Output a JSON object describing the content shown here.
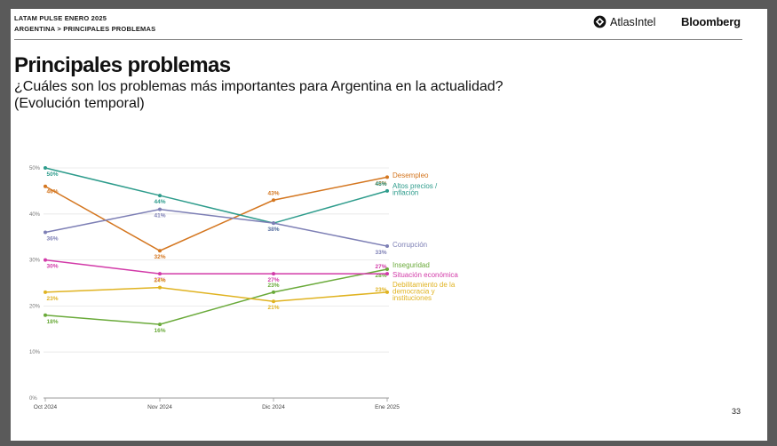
{
  "header": {
    "report": "LATAM PULSE ENERO 2025",
    "breadcrumb": "ARGENTINA > PRINCIPALES PROBLEMAS",
    "logo_atlas": "AtlasIntel",
    "logo_bloomberg": "Bloomberg"
  },
  "title": "Principales problemas",
  "subtitle_line1": "¿Cuáles son los problemas más importantes para Argentina en la actualidad?",
  "subtitle_line2": "(Evolución temporal)",
  "page_number": "33",
  "chart_data": {
    "type": "line",
    "title": "Principales problemas",
    "xlabel": "",
    "ylabel": "",
    "ylim": [
      0,
      50
    ],
    "yticks": [
      "0%",
      "10%",
      "20%",
      "30%",
      "40%",
      "50%"
    ],
    "yticks_values": [
      0,
      10,
      20,
      30,
      40,
      50
    ],
    "categories": [
      "Oct 2024",
      "Nov 2024",
      "Dic 2024",
      "Ene 2025"
    ],
    "series": [
      {
        "name": "Desempleo",
        "color": "#d4761f",
        "values": [
          46,
          32,
          43,
          48
        ],
        "labels": [
          "46%",
          "32%",
          "43%",
          "48%"
        ]
      },
      {
        "name": "Altos precios / inflación",
        "color": "#2e9c8c",
        "values": [
          50,
          44,
          38,
          45
        ],
        "labels": [
          "50%",
          "44%",
          "38%",
          "45%"
        ]
      },
      {
        "name": "Corrupción",
        "color": "#7d7fb5",
        "values": [
          36,
          41,
          38,
          33
        ],
        "labels": [
          "36%",
          "41%",
          "38%",
          "33%"
        ]
      },
      {
        "name": "Inseguridad",
        "color": "#6aaa3a",
        "values": [
          18,
          16,
          23,
          28
        ],
        "labels": [
          "18%",
          "16%",
          "23%",
          "28%"
        ]
      },
      {
        "name": "Situación económica",
        "color": "#d23aa8",
        "values": [
          30,
          27,
          27,
          27
        ],
        "labels": [
          "30%",
          "27%",
          "27%",
          "27%"
        ]
      },
      {
        "name": "Debilitamiento de la democracia y instituciones",
        "color": "#e0b321",
        "values": [
          23,
          24,
          21,
          23
        ],
        "labels": [
          "23%",
          "24%",
          "21%",
          "23%"
        ]
      }
    ],
    "series_label_lines": [
      [
        "Desempleo"
      ],
      [
        "Altos precios /",
        "inflación"
      ],
      [
        "Corrupción"
      ],
      [
        "Inseguridad"
      ],
      [
        "Situación económica"
      ],
      [
        "Debilitamiento de la",
        "democracia y",
        "instituciones"
      ]
    ]
  }
}
